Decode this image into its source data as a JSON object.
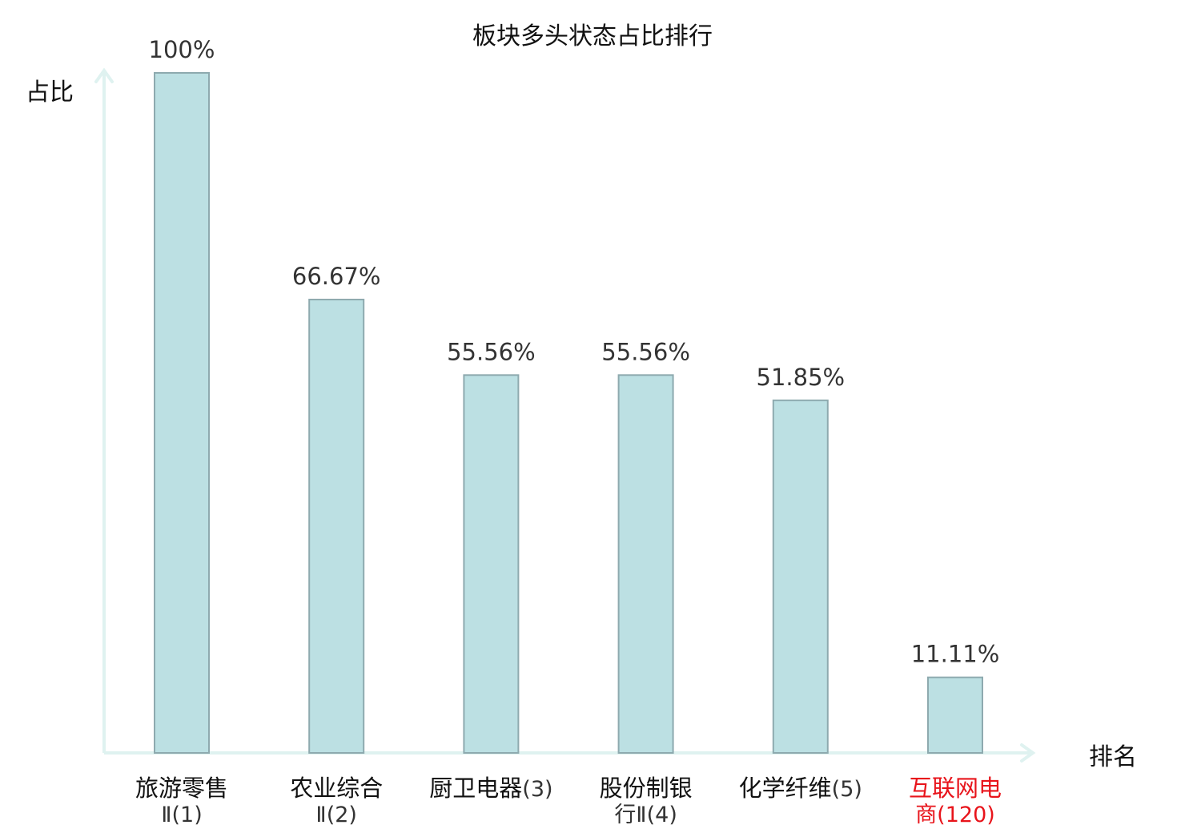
{
  "chart_data": {
    "type": "bar",
    "title": "板块多头状态占比排行",
    "xlabel": "排名",
    "ylabel": "占比",
    "ylim": [
      0,
      100
    ],
    "grid": false,
    "categories": [
      {
        "name": "旅游零售",
        "rank_line": "Ⅱ(1)",
        "highlight": false
      },
      {
        "name": "农业综合",
        "rank_line": "Ⅱ(2)",
        "highlight": false
      },
      {
        "name": "厨卫电器",
        "rank_line": "(3)",
        "highlight": false
      },
      {
        "name": "股份制银",
        "rank_line": "行Ⅱ(4)",
        "highlight": false
      },
      {
        "name": "化学纤维",
        "rank_line": "(5)",
        "highlight": false
      },
      {
        "name": "互联网电",
        "rank_line": "商(120)",
        "highlight": true
      }
    ],
    "values": [
      100,
      66.67,
      55.56,
      55.56,
      51.85,
      11.11
    ],
    "value_labels": [
      "100%",
      "66.67%",
      "55.56%",
      "55.56%",
      "51.85%",
      "11.11%"
    ],
    "colors": {
      "bar_fill": "#bce0e3",
      "bar_stroke": "#8eaaaf",
      "axis": "#dff2f0",
      "label_normal": "#111111",
      "rank_normal": "#333333",
      "label_highlight": "#e8141b",
      "value_text": "#333333"
    }
  }
}
